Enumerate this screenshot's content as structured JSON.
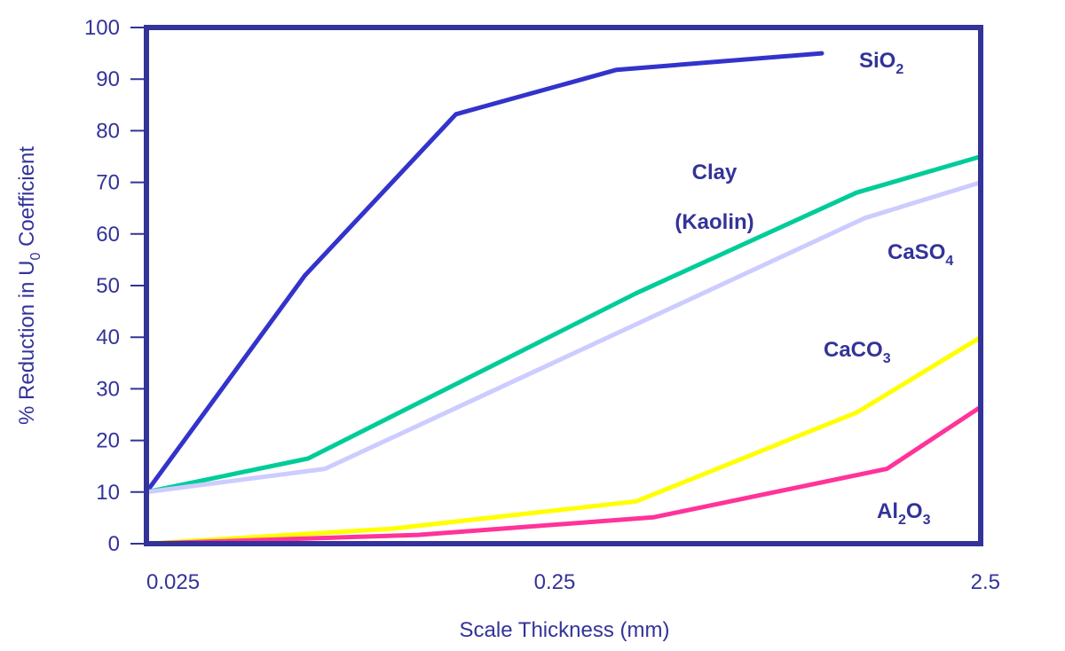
{
  "chart_data": {
    "type": "line",
    "title": "",
    "xlabel": "Scale Thickness (mm)",
    "ylabel": {
      "prefix": "% Reduction in U",
      "subscript": "0",
      "suffix": " Coefficient"
    },
    "x_scale": "log",
    "xlim": [
      0.025,
      2.5
    ],
    "ylim": [
      0,
      100
    ],
    "x_ticks": [
      {
        "value": 0.025,
        "label": "0.025"
      },
      {
        "value": 0.25,
        "label": "0.25"
      },
      {
        "value": 2.5,
        "label": "2.5"
      }
    ],
    "y_ticks": [
      0,
      10,
      20,
      30,
      40,
      50,
      60,
      70,
      80,
      90,
      100
    ],
    "grid": false,
    "axis_color": "#333399",
    "series": [
      {
        "name": "SiO2",
        "label_parts": [
          {
            "t": "SiO"
          },
          {
            "t": "2",
            "sub": true
          }
        ],
        "color": "#3333CC",
        "x": [
          0.025,
          0.06,
          0.138,
          0.335,
          1.04
        ],
        "y": [
          10,
          52,
          83.2,
          91.8,
          95
        ]
      },
      {
        "name": "Clay (Kaolin)",
        "label_parts": [
          {
            "t": "Clay"
          }
        ],
        "label_line2": "(Kaolin)",
        "color": "#00CC99",
        "x": [
          0.025,
          0.061,
          0.373,
          1.26,
          2.5
        ],
        "y": [
          10,
          16.5,
          48.5,
          68,
          75
        ]
      },
      {
        "name": "CaSO4",
        "label_parts": [
          {
            "t": "CaSO"
          },
          {
            "t": "4",
            "sub": true
          }
        ],
        "color": "#CCCCFF",
        "x": [
          0.025,
          0.067,
          1.32,
          2.5
        ],
        "y": [
          10,
          14.5,
          63.1,
          70
        ]
      },
      {
        "name": "CaCO3",
        "label_parts": [
          {
            "t": "CaCO"
          },
          {
            "t": "3",
            "sub": true
          }
        ],
        "color": "#FFFF00",
        "x": [
          0.025,
          0.097,
          0.373,
          1.26,
          2.5
        ],
        "y": [
          0,
          2.9,
          8.2,
          25.4,
          40
        ]
      },
      {
        "name": "Al2O3",
        "label_parts": [
          {
            "t": "Al"
          },
          {
            "t": "2",
            "sub": true
          },
          {
            "t": "O"
          },
          {
            "t": "3",
            "sub": true
          }
        ],
        "color": "#FF3399",
        "x": [
          0.025,
          0.112,
          0.41,
          1.49,
          2.5
        ],
        "y": [
          0,
          1.7,
          5.1,
          14.5,
          26.5
        ]
      }
    ]
  }
}
